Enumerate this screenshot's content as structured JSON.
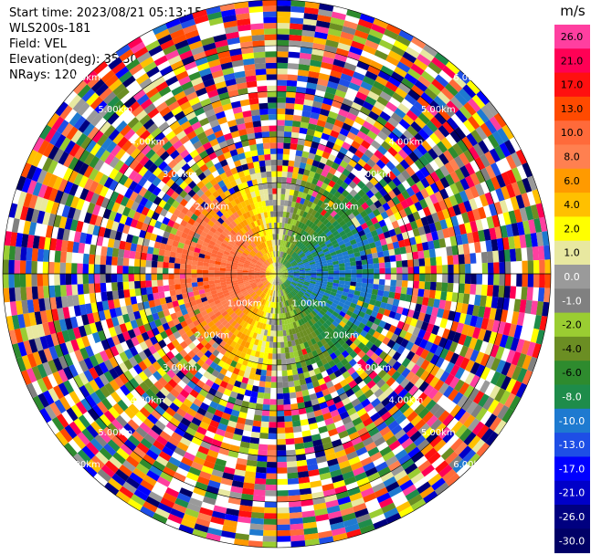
{
  "header": {
    "start_time": "Start time: 2023/08/21 05:13:15",
    "instrument": "WLS200s-181",
    "field": "Field: VEL",
    "elevation": "Elevation(deg): 35.30",
    "nrays": "NRays: 120"
  },
  "colorbar": {
    "unit": "m/s",
    "ticks": [
      "26.0",
      "21.0",
      "17.0",
      "13.0",
      "10.0",
      "8.0",
      "6.0",
      "4.0",
      "2.0",
      "1.0",
      "0.0",
      "-1.0",
      "-2.0",
      "-4.0",
      "-6.0",
      "-8.0",
      "-10.0",
      "-13.0",
      "-17.0",
      "-21.0",
      "-26.0",
      "-30.0"
    ],
    "colors": [
      "#ff3fa0",
      "#ff0055",
      "#ff1010",
      "#ff4a00",
      "#ff6a3a",
      "#ff8050",
      "#ff9a00",
      "#ffc000",
      "#ffff00",
      "#e8e8a0",
      "#9a9a9a",
      "#808080",
      "#9acd32",
      "#6b8e23",
      "#2e8b2e",
      "#1e8c4a",
      "#1e7ad0",
      "#1e4ee6",
      "#0000ff",
      "#0000c8",
      "#000080",
      "#000066"
    ]
  },
  "chart_data": {
    "type": "ppi",
    "field": "VEL",
    "nrays": 120,
    "range_ring_labels": [
      "1.00km",
      "2.00km",
      "3.00km",
      "4.00km",
      "5.00km",
      "6.00km"
    ],
    "color_range": [
      -30.0,
      26.0
    ],
    "grid": true
  }
}
